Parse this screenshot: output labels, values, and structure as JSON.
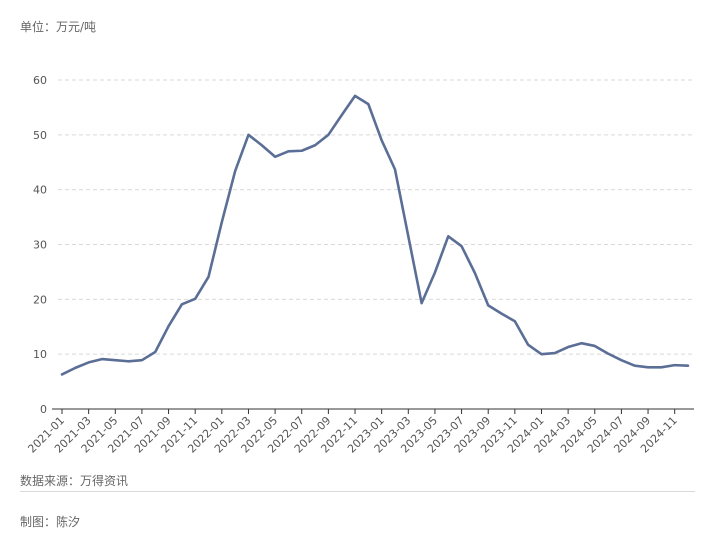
{
  "unit_label": "单位：万元/吨",
  "source": "数据来源：万得资讯",
  "author": "制图：陈汐",
  "colors": {
    "line": "#5b6e96",
    "grid": "#d9d9d9",
    "axis": "#333333"
  },
  "chart_data": {
    "type": "line",
    "ylim": [
      0,
      60
    ],
    "yticks": [
      0,
      10,
      20,
      30,
      40,
      50,
      60
    ],
    "grid": "horizontal dashed",
    "x_tick_labels": [
      "2021-01",
      "2021-03",
      "2021-05",
      "2021-07",
      "2021-09",
      "2021-11",
      "2022-01",
      "2022-03",
      "2022-05",
      "2022-07",
      "2022-09",
      "2022-11",
      "2023-01",
      "2023-03",
      "2023-05",
      "2023-07",
      "2023-09",
      "2023-11",
      "2024-01",
      "2024-03",
      "2024-05",
      "2024-07",
      "2024-09",
      "2024-11"
    ],
    "x": [
      "2021-01",
      "2021-02",
      "2021-03",
      "2021-04",
      "2021-05",
      "2021-06",
      "2021-07",
      "2021-08",
      "2021-09",
      "2021-10",
      "2021-11",
      "2021-12",
      "2022-01",
      "2022-02",
      "2022-03",
      "2022-04",
      "2022-05",
      "2022-06",
      "2022-07",
      "2022-08",
      "2022-09",
      "2022-10",
      "2022-11",
      "2022-12",
      "2023-01",
      "2023-02",
      "2023-03",
      "2023-04",
      "2023-05",
      "2023-06",
      "2023-07",
      "2023-08",
      "2023-09",
      "2023-10",
      "2023-11",
      "2023-12",
      "2024-01",
      "2024-02",
      "2024-03",
      "2024-04",
      "2024-05",
      "2024-06",
      "2024-07",
      "2024-08",
      "2024-09",
      "2024-10",
      "2024-11",
      "2024-12"
    ],
    "series": [
      {
        "values": [
          6.3,
          7.5,
          8.5,
          9.1,
          8.9,
          8.7,
          8.9,
          10.4,
          15.1,
          19.1,
          20.1,
          24.1,
          34.1,
          43.4,
          50.0,
          48.1,
          46.0,
          47.0,
          47.1,
          48.1,
          50.0,
          53.6,
          57.1,
          55.6,
          49.0,
          43.7,
          31.5,
          19.3,
          24.9,
          31.5,
          29.7,
          24.8,
          18.9,
          17.4,
          16.0,
          11.7,
          10.0,
          10.2,
          11.3,
          12.0,
          11.5,
          10.1,
          8.9,
          7.9,
          7.6,
          7.6,
          8.0,
          7.9
        ]
      }
    ]
  }
}
